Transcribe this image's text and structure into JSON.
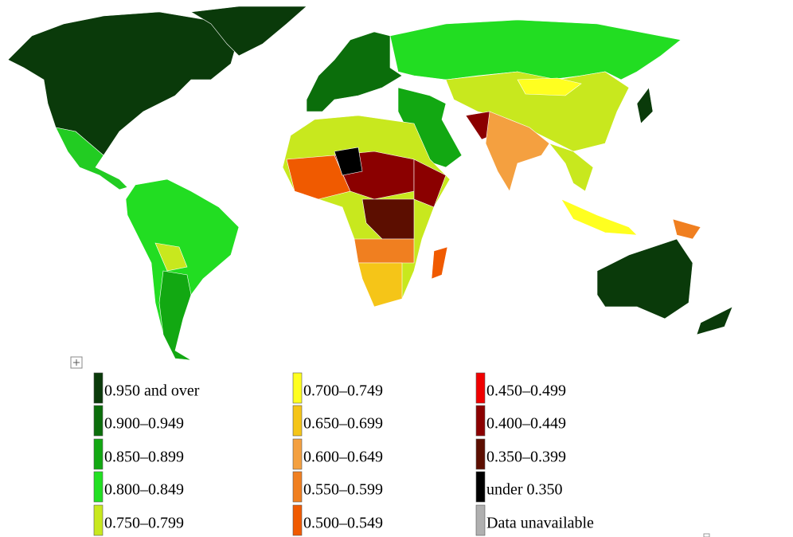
{
  "legend": [
    {
      "label": "0.950 and over",
      "color": "#0a3a0a"
    },
    {
      "label": "0.900–0.949",
      "color": "#0b6e0b"
    },
    {
      "label": "0.850–0.899",
      "color": "#12a812"
    },
    {
      "label": "0.800–0.849",
      "color": "#22e022"
    },
    {
      "label": "0.750–0.799",
      "color": "#c8e81e"
    },
    {
      "label": "0.700–0.749",
      "color": "#ffff20"
    },
    {
      "label": "0.650–0.699",
      "color": "#f5c518"
    },
    {
      "label": "0.600–0.649",
      "color": "#f4a040"
    },
    {
      "label": "0.550–0.599",
      "color": "#f07f20"
    },
    {
      "label": "0.500–0.549",
      "color": "#f05a00"
    },
    {
      "label": "0.450–0.499",
      "color": "#f00000"
    },
    {
      "label": "0.400–0.449",
      "color": "#8b0000"
    },
    {
      "label": "0.350–0.399",
      "color": "#5c0e00"
    },
    {
      "label": "under 0.350",
      "color": "#000000"
    },
    {
      "label": "Data unavailable",
      "color": "#b0b0b0"
    }
  ]
}
